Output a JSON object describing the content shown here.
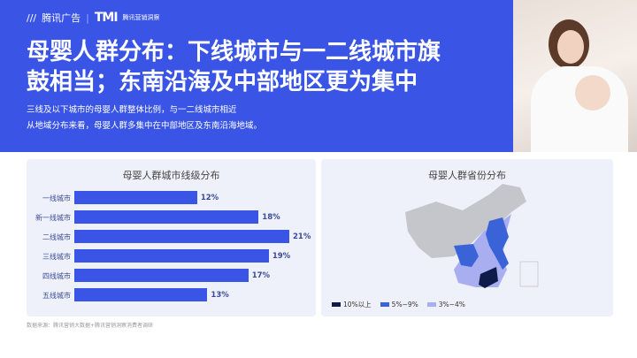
{
  "header": {
    "logo_brand": "腾讯广告",
    "logo_tmi": "TMI",
    "logo_tmi_sub": "腾讯营销洞察",
    "title_line1": "母婴人群分布：下线城市与一二线城市旗",
    "title_line2": "鼓相当；东南沿海及中部地区更为集中",
    "desc_line1": "三线及以下城市的母婴人群整体比例，与一二线城市相近",
    "desc_line2": "从地域分布来看，母婴人群多集中在中部地区及东南沿海地域。"
  },
  "chart_data": [
    {
      "type": "bar",
      "orientation": "horizontal",
      "title": "母婴人群城市线级分布",
      "categories": [
        "一线城市",
        "新一线城市",
        "二线城市",
        "三线城市",
        "四线城市",
        "五线城市"
      ],
      "values": [
        12,
        18,
        21,
        19,
        17,
        13
      ],
      "labels": [
        "12%",
        "18%",
        "21%",
        "19%",
        "17%",
        "13%"
      ],
      "unit": "%",
      "color": "#3a55e6"
    },
    {
      "type": "map",
      "title": "母婴人群省份分布",
      "legend": [
        {
          "label": "10%以上",
          "color": "#0d1a4a"
        },
        {
          "label": "5%~9%",
          "color": "#3a63d8"
        },
        {
          "label": "3%~4%",
          "color": "#a8aef0"
        }
      ],
      "other_color": "#c4c6cc"
    }
  ],
  "source": "数据来源：腾讯营销大数据+腾讯营销洞察消费者调研"
}
